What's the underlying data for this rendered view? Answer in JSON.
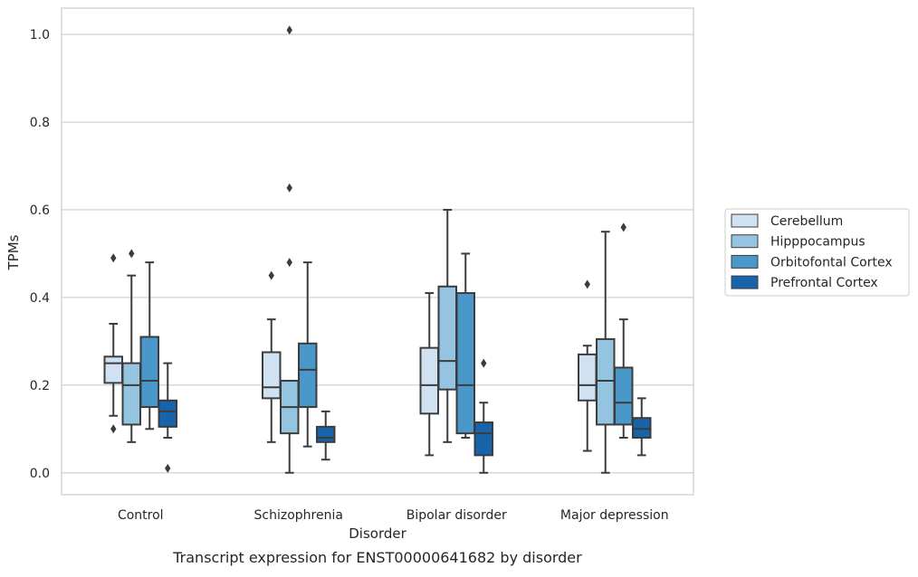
{
  "chart_data": {
    "type": "box",
    "title": "",
    "caption": "Transcript expression for ENST00000641682 by disorder",
    "xlabel": "Disorder",
    "ylabel": "TPMs",
    "ylim": [
      -0.05,
      1.06
    ],
    "yticks": [
      0.0,
      0.2,
      0.4,
      0.6,
      0.8,
      1.0
    ],
    "ytick_labels": [
      "0.0",
      "0.2",
      "0.4",
      "0.6",
      "0.8",
      "1.0"
    ],
    "grid": "horizontal",
    "legend_position": "right, outside plot",
    "categories": [
      "Control",
      "Schizophrenia",
      "Bipolar disorder",
      "Major depression"
    ],
    "series": [
      {
        "name": "Cerebellum",
        "color": "#d0e1f2",
        "boxes": [
          {
            "whisker_low": 0.13,
            "q1": 0.205,
            "median": 0.25,
            "q3": 0.265,
            "whisker_high": 0.34,
            "outliers": [
              0.1,
              0.49
            ]
          },
          {
            "whisker_low": 0.07,
            "q1": 0.17,
            "median": 0.195,
            "q3": 0.275,
            "whisker_high": 0.35,
            "outliers": [
              0.45
            ]
          },
          {
            "whisker_low": 0.04,
            "q1": 0.135,
            "median": 0.2,
            "q3": 0.285,
            "whisker_high": 0.41,
            "outliers": []
          },
          {
            "whisker_low": 0.05,
            "q1": 0.165,
            "median": 0.2,
            "q3": 0.27,
            "whisker_high": 0.29,
            "outliers": [
              0.43
            ]
          }
        ]
      },
      {
        "name": "Hipppocampus",
        "color": "#94c4df",
        "boxes": [
          {
            "whisker_low": 0.07,
            "q1": 0.11,
            "median": 0.2,
            "q3": 0.25,
            "whisker_high": 0.45,
            "outliers": [
              0.5
            ]
          },
          {
            "whisker_low": 0.0,
            "q1": 0.09,
            "median": 0.15,
            "q3": 0.21,
            "whisker_high": 0.21,
            "outliers": [
              0.48,
              0.65,
              1.01
            ]
          },
          {
            "whisker_low": 0.07,
            "q1": 0.19,
            "median": 0.255,
            "q3": 0.425,
            "whisker_high": 0.6,
            "outliers": []
          },
          {
            "whisker_low": 0.0,
            "q1": 0.11,
            "median": 0.21,
            "q3": 0.305,
            "whisker_high": 0.55,
            "outliers": []
          }
        ]
      },
      {
        "name": "Orbitofontal Cortex",
        "color": "#4a98c9",
        "boxes": [
          {
            "whisker_low": 0.1,
            "q1": 0.15,
            "median": 0.21,
            "q3": 0.31,
            "whisker_high": 0.48,
            "outliers": []
          },
          {
            "whisker_low": 0.06,
            "q1": 0.15,
            "median": 0.235,
            "q3": 0.295,
            "whisker_high": 0.48,
            "outliers": []
          },
          {
            "whisker_low": 0.08,
            "q1": 0.09,
            "median": 0.2,
            "q3": 0.41,
            "whisker_high": 0.5,
            "outliers": []
          },
          {
            "whisker_low": 0.08,
            "q1": 0.11,
            "median": 0.16,
            "q3": 0.24,
            "whisker_high": 0.35,
            "outliers": [
              0.56
            ]
          }
        ]
      },
      {
        "name": "Prefrontal Cortex",
        "color": "#1764ab",
        "boxes": [
          {
            "whisker_low": 0.08,
            "q1": 0.105,
            "median": 0.14,
            "q3": 0.165,
            "whisker_high": 0.25,
            "outliers": [
              0.01
            ]
          },
          {
            "whisker_low": 0.03,
            "q1": 0.07,
            "median": 0.08,
            "q3": 0.105,
            "whisker_high": 0.14,
            "outliers": []
          },
          {
            "whisker_low": 0.0,
            "q1": 0.04,
            "median": 0.09,
            "q3": 0.115,
            "whisker_high": 0.16,
            "outliers": [
              0.25
            ]
          },
          {
            "whisker_low": 0.04,
            "q1": 0.08,
            "median": 0.1,
            "q3": 0.125,
            "whisker_high": 0.17,
            "outliers": []
          }
        ]
      }
    ]
  }
}
